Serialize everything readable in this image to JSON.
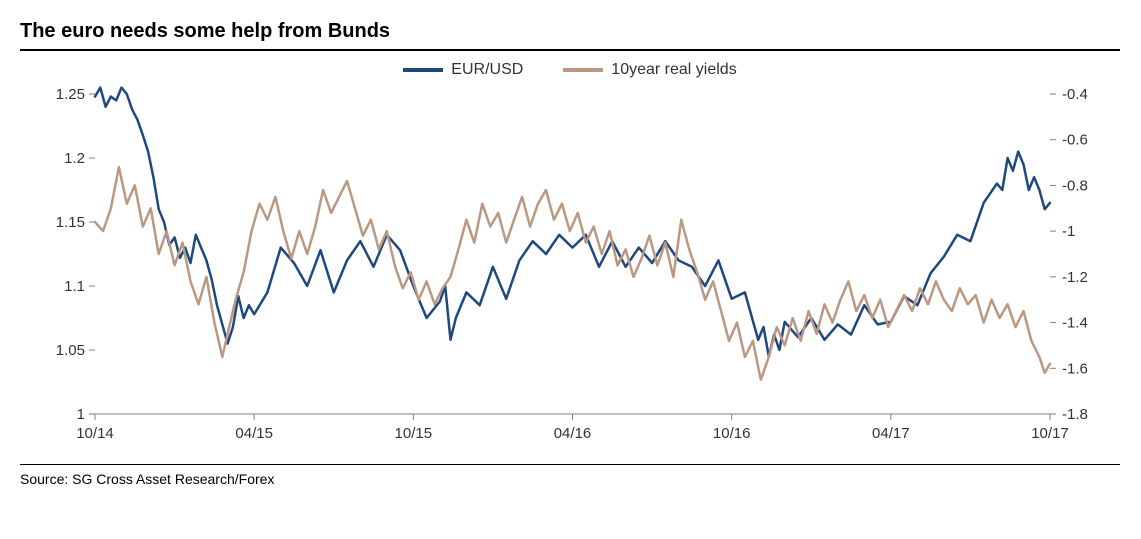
{
  "title": "The euro needs some help from Bunds",
  "source": "Source: SG Cross Asset Research/Forex",
  "chart": {
    "type": "line-dual-axis",
    "background_color": "#ffffff",
    "tick_color": "#808080",
    "tick_length": 6,
    "axis_line_color": "#808080",
    "label_fontsize": 15,
    "label_color": "#333333",
    "line_width": 2.5,
    "x": {
      "ticks": [
        "10/14",
        "04/15",
        "10/15",
        "04/16",
        "10/16",
        "04/17",
        "10/17"
      ],
      "min": 0,
      "max": 36
    },
    "y_left": {
      "min": 1.0,
      "max": 1.25,
      "ticks": [
        1,
        1.05,
        1.1,
        1.15,
        1.2,
        1.25
      ],
      "tick_labels": [
        "1",
        "1.05",
        "1.1",
        "1.15",
        "1.2",
        "1.25"
      ]
    },
    "y_right": {
      "min": -1.8,
      "max": -0.4,
      "ticks": [
        -1.8,
        -1.6,
        -1.4,
        -1.2,
        -1.0,
        -0.8,
        -0.6,
        -0.4
      ],
      "tick_labels": [
        "-1.8",
        "-1.6",
        "-1.4",
        "-1.2",
        "-1",
        "-0.8",
        "-0.6",
        "-0.4"
      ]
    },
    "legend": [
      {
        "label": "EUR/USD",
        "color": "#1f497d"
      },
      {
        "label": "10year real yields",
        "color": "#bb9882"
      }
    ],
    "series": [
      {
        "name": "EUR/USD",
        "axis": "left",
        "color": "#1f497d",
        "data": [
          [
            0,
            1.248
          ],
          [
            0.2,
            1.255
          ],
          [
            0.4,
            1.24
          ],
          [
            0.6,
            1.248
          ],
          [
            0.8,
            1.245
          ],
          [
            1.0,
            1.255
          ],
          [
            1.2,
            1.25
          ],
          [
            1.4,
            1.238
          ],
          [
            1.6,
            1.23
          ],
          [
            1.8,
            1.218
          ],
          [
            2.0,
            1.205
          ],
          [
            2.2,
            1.185
          ],
          [
            2.4,
            1.16
          ],
          [
            2.6,
            1.15
          ],
          [
            2.8,
            1.132
          ],
          [
            3.0,
            1.138
          ],
          [
            3.2,
            1.122
          ],
          [
            3.4,
            1.13
          ],
          [
            3.6,
            1.118
          ],
          [
            3.8,
            1.14
          ],
          [
            4.0,
            1.13
          ],
          [
            4.2,
            1.12
          ],
          [
            4.4,
            1.105
          ],
          [
            4.6,
            1.085
          ],
          [
            4.8,
            1.07
          ],
          [
            5.0,
            1.055
          ],
          [
            5.2,
            1.068
          ],
          [
            5.4,
            1.092
          ],
          [
            5.6,
            1.075
          ],
          [
            5.8,
            1.085
          ],
          [
            6.0,
            1.078
          ],
          [
            6.5,
            1.095
          ],
          [
            7.0,
            1.13
          ],
          [
            7.5,
            1.118
          ],
          [
            8.0,
            1.1
          ],
          [
            8.5,
            1.128
          ],
          [
            9.0,
            1.095
          ],
          [
            9.5,
            1.12
          ],
          [
            10.0,
            1.135
          ],
          [
            10.5,
            1.115
          ],
          [
            11.0,
            1.14
          ],
          [
            11.5,
            1.128
          ],
          [
            12.0,
            1.1
          ],
          [
            12.5,
            1.075
          ],
          [
            13.0,
            1.088
          ],
          [
            13.2,
            1.1
          ],
          [
            13.4,
            1.058
          ],
          [
            13.6,
            1.075
          ],
          [
            14.0,
            1.095
          ],
          [
            14.5,
            1.085
          ],
          [
            15.0,
            1.115
          ],
          [
            15.5,
            1.09
          ],
          [
            16.0,
            1.12
          ],
          [
            16.5,
            1.135
          ],
          [
            17.0,
            1.125
          ],
          [
            17.5,
            1.14
          ],
          [
            18.0,
            1.13
          ],
          [
            18.5,
            1.14
          ],
          [
            19.0,
            1.115
          ],
          [
            19.5,
            1.135
          ],
          [
            20.0,
            1.115
          ],
          [
            20.5,
            1.13
          ],
          [
            21.0,
            1.118
          ],
          [
            21.5,
            1.135
          ],
          [
            22.0,
            1.12
          ],
          [
            22.5,
            1.115
          ],
          [
            23.0,
            1.1
          ],
          [
            23.5,
            1.12
          ],
          [
            24.0,
            1.09
          ],
          [
            24.5,
            1.095
          ],
          [
            25.0,
            1.058
          ],
          [
            25.2,
            1.068
          ],
          [
            25.4,
            1.045
          ],
          [
            25.6,
            1.062
          ],
          [
            25.8,
            1.05
          ],
          [
            26.0,
            1.072
          ],
          [
            26.5,
            1.06
          ],
          [
            27.0,
            1.075
          ],
          [
            27.5,
            1.058
          ],
          [
            28.0,
            1.07
          ],
          [
            28.5,
            1.062
          ],
          [
            29.0,
            1.085
          ],
          [
            29.5,
            1.07
          ],
          [
            30.0,
            1.072
          ],
          [
            30.5,
            1.092
          ],
          [
            31.0,
            1.085
          ],
          [
            31.5,
            1.11
          ],
          [
            32.0,
            1.123
          ],
          [
            32.5,
            1.14
          ],
          [
            33.0,
            1.135
          ],
          [
            33.5,
            1.165
          ],
          [
            34.0,
            1.18
          ],
          [
            34.2,
            1.175
          ],
          [
            34.4,
            1.2
          ],
          [
            34.6,
            1.19
          ],
          [
            34.8,
            1.205
          ],
          [
            35.0,
            1.195
          ],
          [
            35.2,
            1.175
          ],
          [
            35.4,
            1.185
          ],
          [
            35.6,
            1.175
          ],
          [
            35.8,
            1.16
          ],
          [
            36.0,
            1.165
          ]
        ]
      },
      {
        "name": "10year real yields",
        "axis": "right",
        "color": "#bb9882",
        "data": [
          [
            0,
            -0.96
          ],
          [
            0.3,
            -1.0
          ],
          [
            0.6,
            -0.9
          ],
          [
            0.9,
            -0.72
          ],
          [
            1.2,
            -0.88
          ],
          [
            1.5,
            -0.8
          ],
          [
            1.8,
            -0.98
          ],
          [
            2.1,
            -0.9
          ],
          [
            2.4,
            -1.1
          ],
          [
            2.7,
            -1.0
          ],
          [
            3.0,
            -1.15
          ],
          [
            3.3,
            -1.05
          ],
          [
            3.6,
            -1.22
          ],
          [
            3.9,
            -1.32
          ],
          [
            4.2,
            -1.2
          ],
          [
            4.5,
            -1.4
          ],
          [
            4.8,
            -1.55
          ],
          [
            5.0,
            -1.45
          ],
          [
            5.3,
            -1.3
          ],
          [
            5.6,
            -1.18
          ],
          [
            5.9,
            -1.0
          ],
          [
            6.2,
            -0.88
          ],
          [
            6.5,
            -0.95
          ],
          [
            6.8,
            -0.85
          ],
          [
            7.1,
            -1.0
          ],
          [
            7.4,
            -1.12
          ],
          [
            7.7,
            -1.0
          ],
          [
            8.0,
            -1.1
          ],
          [
            8.3,
            -0.98
          ],
          [
            8.6,
            -0.82
          ],
          [
            8.9,
            -0.92
          ],
          [
            9.2,
            -0.85
          ],
          [
            9.5,
            -0.78
          ],
          [
            9.8,
            -0.9
          ],
          [
            10.1,
            -1.02
          ],
          [
            10.4,
            -0.95
          ],
          [
            10.7,
            -1.08
          ],
          [
            11.0,
            -1.0
          ],
          [
            11.3,
            -1.15
          ],
          [
            11.6,
            -1.25
          ],
          [
            11.9,
            -1.18
          ],
          [
            12.2,
            -1.3
          ],
          [
            12.5,
            -1.22
          ],
          [
            12.8,
            -1.32
          ],
          [
            13.1,
            -1.25
          ],
          [
            13.4,
            -1.2
          ],
          [
            13.7,
            -1.08
          ],
          [
            14.0,
            -0.95
          ],
          [
            14.3,
            -1.05
          ],
          [
            14.6,
            -0.88
          ],
          [
            14.9,
            -0.98
          ],
          [
            15.2,
            -0.92
          ],
          [
            15.5,
            -1.05
          ],
          [
            15.8,
            -0.95
          ],
          [
            16.1,
            -0.85
          ],
          [
            16.4,
            -0.98
          ],
          [
            16.7,
            -0.88
          ],
          [
            17.0,
            -0.82
          ],
          [
            17.3,
            -0.95
          ],
          [
            17.6,
            -0.88
          ],
          [
            17.9,
            -1.0
          ],
          [
            18.2,
            -0.92
          ],
          [
            18.5,
            -1.05
          ],
          [
            18.8,
            -0.98
          ],
          [
            19.1,
            -1.1
          ],
          [
            19.4,
            -1.0
          ],
          [
            19.7,
            -1.15
          ],
          [
            20.0,
            -1.08
          ],
          [
            20.3,
            -1.2
          ],
          [
            20.6,
            -1.12
          ],
          [
            20.9,
            -1.02
          ],
          [
            21.2,
            -1.15
          ],
          [
            21.5,
            -1.05
          ],
          [
            21.8,
            -1.2
          ],
          [
            22.1,
            -0.95
          ],
          [
            22.4,
            -1.08
          ],
          [
            22.7,
            -1.18
          ],
          [
            23.0,
            -1.3
          ],
          [
            23.3,
            -1.22
          ],
          [
            23.6,
            -1.35
          ],
          [
            23.9,
            -1.48
          ],
          [
            24.2,
            -1.4
          ],
          [
            24.5,
            -1.55
          ],
          [
            24.8,
            -1.48
          ],
          [
            25.1,
            -1.65
          ],
          [
            25.4,
            -1.55
          ],
          [
            25.7,
            -1.42
          ],
          [
            26.0,
            -1.5
          ],
          [
            26.3,
            -1.38
          ],
          [
            26.6,
            -1.48
          ],
          [
            26.9,
            -1.35
          ],
          [
            27.2,
            -1.45
          ],
          [
            27.5,
            -1.32
          ],
          [
            27.8,
            -1.4
          ],
          [
            28.1,
            -1.3
          ],
          [
            28.4,
            -1.22
          ],
          [
            28.7,
            -1.35
          ],
          [
            29.0,
            -1.28
          ],
          [
            29.3,
            -1.38
          ],
          [
            29.6,
            -1.3
          ],
          [
            29.9,
            -1.42
          ],
          [
            30.2,
            -1.35
          ],
          [
            30.5,
            -1.28
          ],
          [
            30.8,
            -1.35
          ],
          [
            31.1,
            -1.25
          ],
          [
            31.4,
            -1.32
          ],
          [
            31.7,
            -1.22
          ],
          [
            32.0,
            -1.3
          ],
          [
            32.3,
            -1.35
          ],
          [
            32.6,
            -1.25
          ],
          [
            32.9,
            -1.32
          ],
          [
            33.2,
            -1.28
          ],
          [
            33.5,
            -1.4
          ],
          [
            33.8,
            -1.3
          ],
          [
            34.1,
            -1.38
          ],
          [
            34.4,
            -1.32
          ],
          [
            34.7,
            -1.42
          ],
          [
            35.0,
            -1.35
          ],
          [
            35.3,
            -1.48
          ],
          [
            35.6,
            -1.55
          ],
          [
            35.8,
            -1.62
          ],
          [
            36.0,
            -1.58
          ]
        ]
      }
    ]
  }
}
